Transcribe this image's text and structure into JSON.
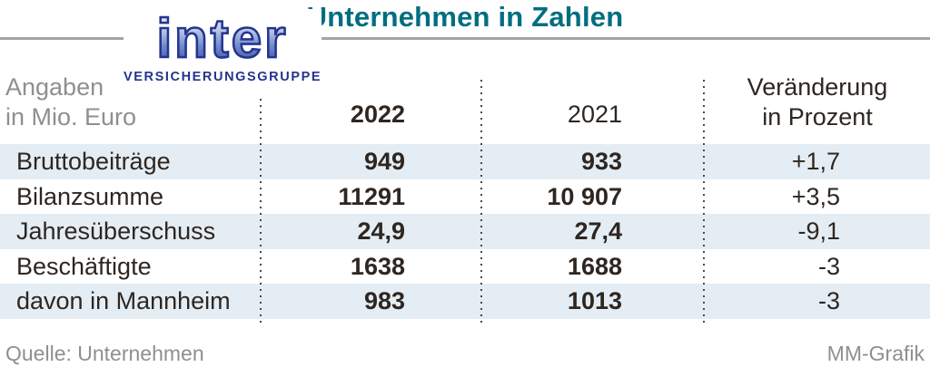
{
  "title": "Unternehmen in Zahlen",
  "logo": {
    "name": "inter",
    "subtitle": "VERSICHERUNGSGRUPPE"
  },
  "table": {
    "unit_line1": "Angaben",
    "unit_line2": "in Mio. Euro",
    "col_2022": "2022",
    "col_2021": "2021",
    "change_line1": "Veränderung",
    "change_line2": "in Prozent",
    "rows": [
      {
        "label": "Bruttobeiträge",
        "y2022": "949",
        "y2021": "933",
        "change": "+1,7"
      },
      {
        "label": "Bilanzsumme",
        "y2022": "11291",
        "y2021": "10 907",
        "change": "+3,5"
      },
      {
        "label": "Jahresüberschuss",
        "y2022": "24,9",
        "y2021": "27,4",
        "change": "-9,1"
      },
      {
        "label": "Beschäftigte",
        "y2022": "1638",
        "y2021": "1688",
        "change": "-3"
      },
      {
        "label": "davon in Mannheim",
        "y2022": "983",
        "y2021": "1013",
        "change": "-3"
      }
    ]
  },
  "footer": {
    "source": "Quelle: Unternehmen",
    "credit": "MM-Grafik"
  },
  "colors": {
    "title_teal": "#006e80",
    "logo_blue": "#24358c",
    "row_alt_blue": "#e4edf4",
    "text_dark": "#2e2620",
    "text_gray": "#8f8f8d",
    "rule_gray": "#a4a4a4"
  },
  "chart_data": {
    "type": "table",
    "title": "Unternehmen in Zahlen",
    "unit": "Angaben in Mio. Euro",
    "columns": [
      "Angaben in Mio. Euro",
      "2022",
      "2021",
      "Veränderung in Prozent"
    ],
    "rows": [
      [
        "Bruttobeiträge",
        "949",
        "933",
        "+1,7"
      ],
      [
        "Bilanzsumme",
        "11291",
        "10 907",
        "+3,5"
      ],
      [
        "Jahresüberschuss",
        "24,9",
        "27,4",
        "-9,1"
      ],
      [
        "Beschäftigte",
        "1638",
        "1688",
        "-3"
      ],
      [
        "davon in Mannheim",
        "983",
        "1013",
        "-3"
      ]
    ],
    "notes": "Values for 2022 and 2021 in bold; alternating light-blue row stripes; dotted vertical column separators",
    "source": "Quelle: Unternehmen",
    "credit": "MM-Grafik"
  }
}
